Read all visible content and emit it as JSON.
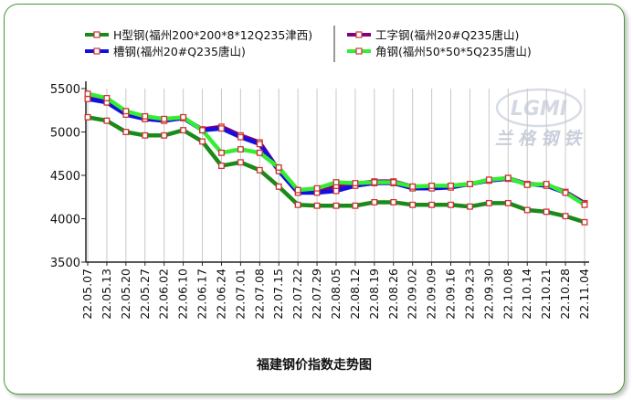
{
  "chart_data": {
    "type": "line",
    "title": "福建钢价指数走势图",
    "xlabel": "",
    "ylabel": "",
    "ylim": [
      3500,
      5500
    ],
    "yticks": [
      3500,
      4000,
      4500,
      5000,
      5500
    ],
    "grid": "vertical",
    "legend_position": "top",
    "watermark": {
      "logo": "LGMI",
      "text": "兰格钢铁"
    },
    "categories": [
      "22.05.07",
      "22.05.13",
      "22.05.20",
      "22.05.27",
      "22.06.02",
      "22.06.10",
      "22.06.17",
      "22.06.24",
      "22.07.01",
      "22.07.08",
      "22.07.15",
      "22.07.22",
      "22.07.29",
      "22.08.05",
      "22.08.12",
      "22.08.19",
      "22.08.26",
      "22.09.02",
      "22.09.09",
      "22.09.16",
      "22.09.23",
      "22.09.30",
      "22.10.08",
      "22.10.14",
      "22.10.21",
      "22.10.28",
      "22.11.04"
    ],
    "series": [
      {
        "name": "H型钢(福州200*200*8*12Q235津西)",
        "color": "#1a8a1a",
        "values": [
          5170,
          5130,
          5000,
          4960,
          4960,
          5020,
          4890,
          4610,
          4650,
          4560,
          4370,
          4160,
          4150,
          4150,
          4150,
          4190,
          4190,
          4160,
          4160,
          4160,
          4140,
          4180,
          4180,
          4100,
          4080,
          4030,
          3960
        ]
      },
      {
        "name": "工字钢(福州20#Q235唐山)",
        "color": "#800080",
        "values": [
          5390,
          5350,
          5220,
          5150,
          5130,
          5160,
          5030,
          5060,
          4960,
          4880,
          4560,
          4330,
          4340,
          4370,
          4400,
          4430,
          4430,
          4370,
          4370,
          4380,
          4400,
          4440,
          4470,
          4400,
          4390,
          4310,
          4180
        ]
      },
      {
        "name": "槽钢(福州20#Q235唐山)",
        "color": "#1010e0",
        "values": [
          5380,
          5340,
          5200,
          5150,
          5130,
          5160,
          5020,
          5040,
          4940,
          4860,
          4550,
          4300,
          4300,
          4320,
          4380,
          4410,
          4410,
          4350,
          4350,
          4360,
          4400,
          4440,
          4460,
          4400,
          4380,
          4300,
          4170
        ]
      },
      {
        "name": "角钢(福州50*50*5Q235唐山)",
        "color": "#33ee33",
        "values": [
          5440,
          5390,
          5240,
          5180,
          5150,
          5170,
          5020,
          4760,
          4800,
          4760,
          4590,
          4330,
          4350,
          4420,
          4410,
          4420,
          4420,
          4370,
          4380,
          4380,
          4400,
          4450,
          4470,
          4390,
          4400,
          4300,
          4160
        ]
      }
    ]
  }
}
